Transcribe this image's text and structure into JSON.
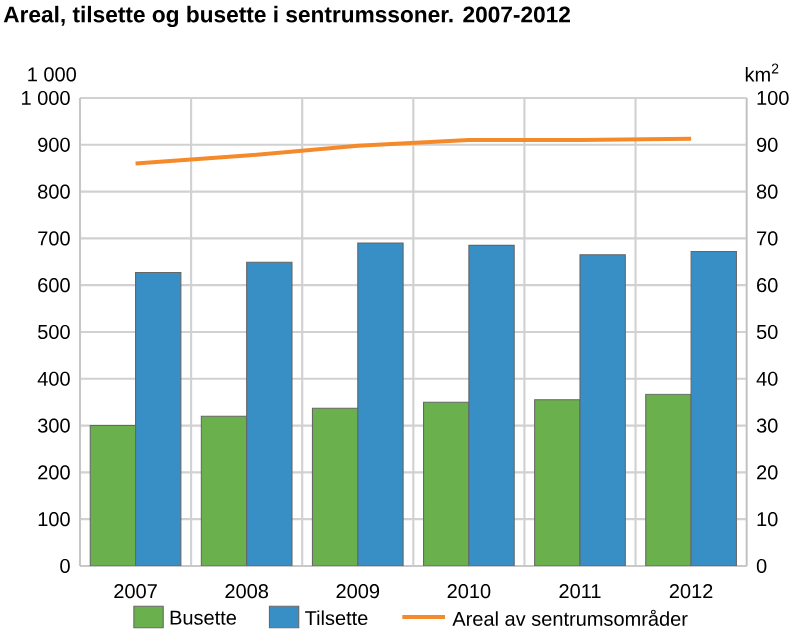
{
  "chart_data": {
    "type": "bar",
    "title": "Areal, tilsette og busette i sentrumssoner. 2007-2012",
    "ylabel": "1 000",
    "y2label": "km$^{2}$",
    "categories": [
      "2007",
      "2008",
      "2009",
      "2010",
      "2011",
      "2012"
    ],
    "series": [
      {
        "name": "Busette",
        "color": "#6ab04c",
        "values": [
          300,
          320,
          337,
          350,
          355,
          367
        ]
      },
      {
        "name": "Tilsette",
        "color": "#378fc5",
        "values": [
          627,
          649,
          690,
          685,
          665,
          672
        ]
      },
      {
        "name": "Areal av sentrumsområder",
        "type": "line",
        "axis": "y2",
        "color": "#f58a2b",
        "values": [
          86.0,
          87.7,
          89.8,
          91.0,
          91.0,
          91.3
        ]
      }
    ],
    "ylim": [
      0,
      1000
    ],
    "yticks": [
      0,
      100,
      200,
      300,
      400,
      500,
      600,
      700,
      800,
      900,
      {
        "value": 1000,
        "label": "1 000"
      }
    ],
    "y2lim": [
      0,
      100
    ],
    "y2ticks": [
      0,
      10,
      20,
      30,
      40,
      50,
      60,
      70,
      80,
      90,
      100
    ],
    "grid": true,
    "legend": "bottom"
  }
}
